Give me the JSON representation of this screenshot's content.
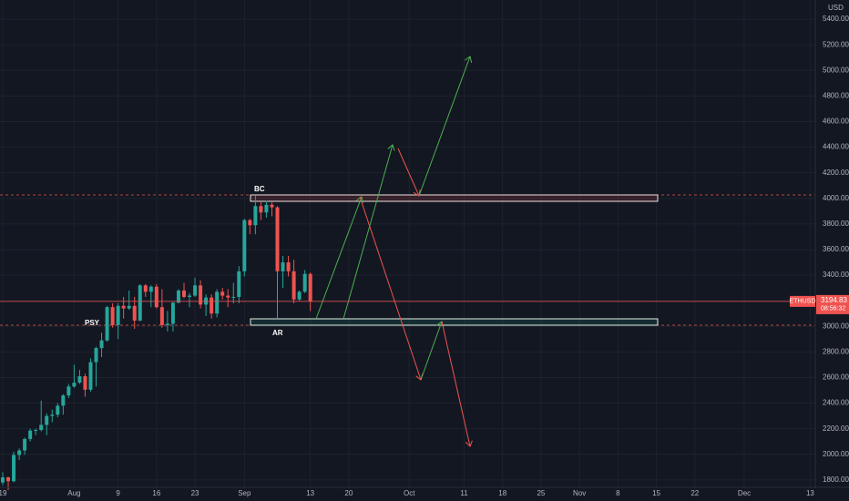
{
  "chart_data": {
    "type": "candlestick",
    "symbol": "ETHUSD",
    "unit": "USD",
    "price_label": 3194.83,
    "countdown": "08:56:32",
    "annotations": [
      "BC",
      "PSY",
      "AR"
    ],
    "up_color": "#26a69a",
    "down_color": "#ef5350",
    "grid": true,
    "ylim": [
      1742,
      5550
    ],
    "yticks": [
      {
        "value": 1800,
        "label": "1800.00"
      },
      {
        "value": 2000,
        "label": "2000.00"
      },
      {
        "value": 2200,
        "label": "2200.00"
      },
      {
        "value": 2400,
        "label": "2400.00"
      },
      {
        "value": 2600,
        "label": "2600.00"
      },
      {
        "value": 2800,
        "label": "2800.00"
      },
      {
        "value": 3000,
        "label": "3000.00"
      },
      {
        "value": 3200,
        "label": "3200.00"
      },
      {
        "value": 3400,
        "label": "3400.00"
      },
      {
        "value": 3600,
        "label": "3600.00"
      },
      {
        "value": 3800,
        "label": "3800.00"
      },
      {
        "value": 4000,
        "label": "4000.00"
      },
      {
        "value": 4200,
        "label": "4200.00"
      },
      {
        "value": 4400,
        "label": "4400.00"
      },
      {
        "value": 4600,
        "label": "4600.00"
      },
      {
        "value": 4800,
        "label": "4800.00"
      },
      {
        "value": 5000,
        "label": "5000.00"
      },
      {
        "value": 5200,
        "label": "5200.00"
      },
      {
        "value": 5400,
        "label": "5400.00"
      }
    ],
    "categories": [
      "19",
      null,
      null,
      null,
      null,
      null,
      null,
      null,
      null,
      null,
      null,
      null,
      null,
      "Aug",
      null,
      null,
      null,
      null,
      null,
      null,
      null,
      "9",
      null,
      null,
      null,
      null,
      null,
      null,
      "16",
      null,
      null,
      null,
      null,
      null,
      null,
      "23",
      null,
      null,
      null,
      null,
      null,
      null,
      null,
      null,
      "Sep",
      null,
      null,
      null,
      null,
      null,
      null,
      null,
      null,
      null,
      null,
      null,
      "13",
      null,
      null,
      null,
      null,
      null,
      null,
      "20",
      null,
      null,
      null,
      null,
      null,
      null,
      null,
      null,
      null,
      null,
      "Oct",
      null,
      null,
      null,
      null,
      null,
      null,
      null,
      null,
      null,
      "11",
      null,
      null,
      null,
      null,
      null,
      null,
      "18",
      null,
      null,
      null,
      null,
      null,
      null,
      "25",
      null,
      null,
      null,
      null,
      null,
      null,
      "Nov",
      null,
      null,
      null,
      null,
      null,
      null,
      "8",
      null,
      null,
      null,
      null,
      null,
      null,
      "15",
      null,
      null,
      null,
      null,
      null,
      null,
      "22",
      null,
      null,
      null,
      null,
      null,
      null,
      null,
      null,
      "Dec",
      null,
      null,
      null,
      null,
      null,
      null,
      null,
      null,
      null,
      null,
      null,
      "13"
    ],
    "open": [
      1780,
      1820,
      1790,
      1995,
      2030,
      2120,
      2185,
      2190,
      2230,
      2300,
      2310,
      2380,
      2460,
      2530,
      2560,
      2610,
      2505,
      2720,
      2830,
      2890,
      3150,
      3010,
      3160,
      3140,
      3160,
      3045,
      3320,
      3270,
      3310,
      3150,
      3010,
      3020,
      3185,
      3280,
      3230,
      3240,
      3320,
      3170,
      3225,
      3100,
      3270,
      3240,
      3225,
      3230,
      3430,
      3830,
      3790,
      3940,
      3890,
      3950,
      3930,
      3430,
      3500,
      3430,
      3210,
      3270,
      3410,
      null,
      null,
      null,
      null,
      null,
      null,
      null,
      null,
      null,
      null,
      null,
      null,
      null,
      null,
      null,
      null,
      null,
      null,
      null,
      null,
      null,
      null,
      null,
      null,
      null,
      null,
      null,
      null,
      null,
      null,
      null,
      null,
      null,
      null,
      null,
      null,
      null,
      null,
      null,
      null,
      null,
      null,
      null,
      null,
      null,
      null,
      null,
      null,
      null,
      null,
      null,
      null,
      null,
      null,
      null,
      null,
      null,
      null,
      null,
      null,
      null,
      null,
      null,
      null,
      null,
      null,
      null,
      null,
      null,
      null,
      null,
      null,
      null,
      null,
      null,
      null,
      null,
      null,
      null,
      null,
      null,
      null,
      null,
      null,
      null,
      null,
      null,
      null,
      null,
      null,
      null
    ],
    "high": [
      1860,
      1825,
      2020,
      2045,
      2130,
      2200,
      2200,
      2420,
      2320,
      2350,
      2400,
      2470,
      2550,
      2700,
      2660,
      2630,
      2750,
      2840,
      2950,
      3160,
      3180,
      3180,
      3230,
      3280,
      3230,
      3330,
      3330,
      3320,
      3330,
      3290,
      3120,
      3190,
      3290,
      3340,
      3260,
      3380,
      3360,
      3250,
      3250,
      3290,
      3300,
      3290,
      3340,
      3470,
      3840,
      3840,
      4020,
      3970,
      3980,
      3970,
      3940,
      3550,
      3550,
      3520,
      3280,
      3440,
      3420,
      null,
      null,
      null,
      null,
      null,
      null,
      null,
      null,
      null,
      null,
      null,
      null,
      null,
      null,
      null,
      null,
      null,
      null,
      null,
      null,
      null,
      null,
      null,
      null,
      null,
      null,
      null,
      null,
      null,
      null,
      null,
      null,
      null,
      null,
      null,
      null,
      null,
      null,
      null,
      null,
      null,
      null,
      null,
      null,
      null,
      null,
      null,
      null,
      null,
      null,
      null,
      null,
      null,
      null,
      null,
      null,
      null,
      null,
      null,
      null,
      null,
      null,
      null,
      null,
      null,
      null,
      null,
      null,
      null,
      null,
      null,
      null,
      null,
      null,
      null,
      null,
      null,
      null,
      null,
      null,
      null,
      null,
      null,
      null,
      null,
      null,
      null,
      null,
      null,
      null,
      null
    ],
    "low": [
      1760,
      1720,
      1780,
      1955,
      1995,
      2100,
      2150,
      2180,
      2150,
      2250,
      2290,
      2310,
      2440,
      2520,
      2550,
      2450,
      2490,
      2530,
      2760,
      2880,
      2990,
      2900,
      3060,
      3130,
      2980,
      3040,
      3230,
      3150,
      3140,
      2990,
      2960,
      2960,
      3180,
      3220,
      3150,
      3230,
      3140,
      3080,
      3060,
      3070,
      3210,
      3150,
      3180,
      3180,
      3390,
      3720,
      3720,
      3830,
      3850,
      3860,
      3050,
      3300,
      3390,
      3180,
      3200,
      3260,
      3120,
      null,
      null,
      null,
      null,
      null,
      null,
      null,
      null,
      null,
      null,
      null,
      null,
      null,
      null,
      null,
      null,
      null,
      null,
      null,
      null,
      null,
      null,
      null,
      null,
      null,
      null,
      null,
      null,
      null,
      null,
      null,
      null,
      null,
      null,
      null,
      null,
      null,
      null,
      null,
      null,
      null,
      null,
      null,
      null,
      null,
      null,
      null,
      null,
      null,
      null,
      null,
      null,
      null,
      null,
      null,
      null,
      null,
      null,
      null,
      null,
      null,
      null,
      null,
      null,
      null,
      null,
      null,
      null,
      null,
      null,
      null,
      null,
      null,
      null,
      null,
      null,
      null,
      null,
      null,
      null,
      null,
      null,
      null,
      null,
      null,
      null,
      null,
      null,
      null,
      null,
      null
    ],
    "close": [
      1820,
      1790,
      1995,
      2030,
      2120,
      2185,
      2190,
      2230,
      2300,
      2310,
      2380,
      2460,
      2530,
      2560,
      2610,
      2505,
      2720,
      2830,
      2890,
      3150,
      3010,
      3160,
      3140,
      3160,
      3045,
      3320,
      3270,
      3310,
      3150,
      3010,
      3020,
      3185,
      3280,
      3230,
      3240,
      3320,
      3170,
      3225,
      3100,
      3270,
      3240,
      3225,
      3230,
      3430,
      3830,
      3790,
      3940,
      3890,
      3950,
      3930,
      3430,
      3500,
      3430,
      3210,
      3270,
      3410,
      3194.83,
      null,
      null,
      null,
      null,
      null,
      null,
      null,
      null,
      null,
      null,
      null,
      null,
      null,
      null,
      null,
      null,
      null,
      null,
      null,
      null,
      null,
      null,
      null,
      null,
      null,
      null,
      null,
      null,
      null,
      null,
      null,
      null,
      null,
      null,
      null,
      null,
      null,
      null,
      null,
      null,
      null,
      null,
      null,
      null,
      null,
      null,
      null,
      null,
      null,
      null,
      null,
      null,
      null,
      null,
      null,
      null,
      null,
      null,
      null,
      null,
      null,
      null,
      null,
      null,
      null,
      null,
      null,
      null,
      null,
      null,
      null,
      null,
      null,
      null,
      null,
      null,
      null,
      null,
      null,
      null,
      null,
      null,
      null,
      null,
      null,
      null,
      null,
      null,
      null,
      null,
      null
    ]
  }
}
